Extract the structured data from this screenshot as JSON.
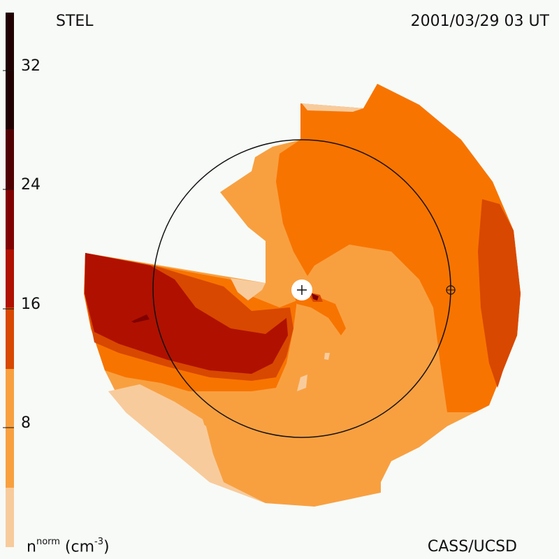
{
  "header": {
    "left_label": "STEL",
    "right_label": "2001/03/29 03 UT"
  },
  "footer": {
    "right_label": "CASS/UCSD",
    "units_main": "n",
    "units_sup": "norm",
    "units_tail": " (cm",
    "units_exp": "-3",
    "units_close": ")"
  },
  "colorbar": {
    "ticks": [
      "32",
      "24",
      "16",
      "8"
    ],
    "tick_values": [
      32,
      24,
      16,
      8
    ],
    "range": [
      0,
      36
    ],
    "levels": [
      {
        "color": "#f8cb9c"
      },
      {
        "color": "#f8a040"
      },
      {
        "color": "#f87400"
      },
      {
        "color": "#d84800"
      },
      {
        "color": "#b01000"
      },
      {
        "color": "#800000"
      },
      {
        "color": "#500000"
      },
      {
        "color": "#200000"
      }
    ]
  },
  "map": {
    "markers": [
      {
        "name": "sun-marker",
        "symbol": "+"
      },
      {
        "name": "earth-marker",
        "symbol": "⊕"
      }
    ]
  }
}
